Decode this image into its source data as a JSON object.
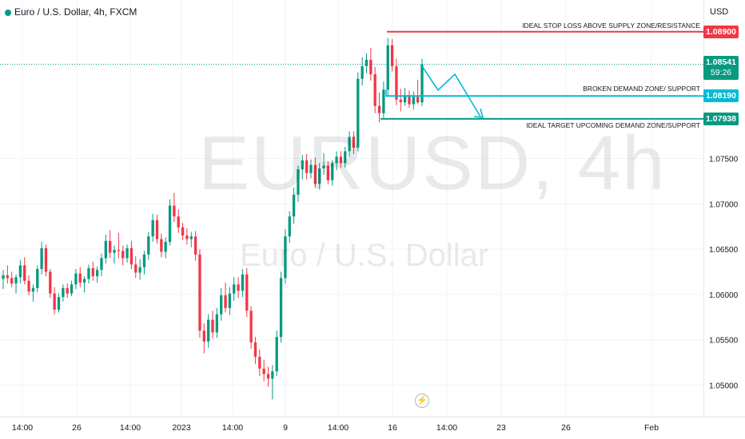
{
  "header": {
    "title": "Euro / U.S. Dollar, 4h, FXCM"
  },
  "watermark": {
    "symbol": "EURUSD, 4h",
    "name": "Euro / U.S. Dollar"
  },
  "price_scale": {
    "currency": "USD",
    "last_price": "1.08541",
    "countdown": "59:26"
  },
  "lines": [
    {
      "label": "IDEAL STOP LOSS ABOVE SUPPLY ZONE/RESISTANCE",
      "price": 1.089,
      "tag": "1.08900",
      "color": "#f23645"
    },
    {
      "label": "BROKEN DEMAND ZONE/ SUPPORT",
      "price": 1.0819,
      "tag": "1.08190",
      "color": "#00bcd4"
    },
    {
      "label": "IDEAL TARGET UPCOMING DEMAND ZONE/SUPPORT",
      "price": 1.07938,
      "tag": "1.07938",
      "color": "#089981"
    }
  ],
  "colors": {
    "up": "#089981",
    "down": "#f23645",
    "grid": "#f0f3fa",
    "projection": "#00bcd4",
    "last_price_tag": "#089981"
  },
  "chart_data": {
    "type": "candlestick",
    "title": "Euro / U.S. Dollar, 4h, FXCM",
    "symbol": "EURUSD",
    "interval": "4h",
    "ylim": [
      1.0465,
      1.0925
    ],
    "y_ticks": [
      "1.07500",
      "1.07000",
      "1.06500",
      "1.06000",
      "1.05500",
      "1.05000"
    ],
    "x_ticks": [
      "14:00",
      "26",
      "14:00",
      "2023",
      "14:00",
      "9",
      "14:00",
      "16",
      "14:00",
      "23",
      "26",
      "Feb"
    ],
    "grid": true,
    "candles": [
      [
        1.0617,
        1.0627,
        1.0606,
        1.0621
      ],
      [
        1.0621,
        1.0632,
        1.0612,
        1.0618
      ],
      [
        1.0618,
        1.0625,
        1.0608,
        1.0612
      ],
      [
        1.0612,
        1.0622,
        1.0601,
        1.0619
      ],
      [
        1.0619,
        1.0638,
        1.0612,
        1.0632
      ],
      [
        1.0632,
        1.0641,
        1.0611,
        1.0615
      ],
      [
        1.0615,
        1.0621,
        1.0599,
        1.0603
      ],
      [
        1.0603,
        1.0611,
        1.0592,
        1.0607
      ],
      [
        1.0607,
        1.0632,
        1.0602,
        1.0628
      ],
      [
        1.0628,
        1.0658,
        1.0622,
        1.0651
      ],
      [
        1.0651,
        1.0655,
        1.062,
        1.0625
      ],
      [
        1.0625,
        1.0628,
        1.0596,
        1.0601
      ],
      [
        1.0601,
        1.0608,
        1.0578,
        1.0583
      ],
      [
        1.0583,
        1.0601,
        1.058,
        1.0597
      ],
      [
        1.0597,
        1.0611,
        1.0592,
        1.0607
      ],
      [
        1.0607,
        1.0612,
        1.0596,
        1.0601
      ],
      [
        1.0601,
        1.0615,
        1.0598,
        1.0611
      ],
      [
        1.0611,
        1.0628,
        1.0606,
        1.0623
      ],
      [
        1.0623,
        1.063,
        1.0608,
        1.0613
      ],
      [
        1.0613,
        1.062,
        1.0602,
        1.0617
      ],
      [
        1.0617,
        1.0633,
        1.0612,
        1.0629
      ],
      [
        1.0629,
        1.0636,
        1.0615,
        1.062
      ],
      [
        1.062,
        1.0631,
        1.0613,
        1.0627
      ],
      [
        1.0627,
        1.0645,
        1.062,
        1.064
      ],
      [
        1.064,
        1.0666,
        1.0634,
        1.0659
      ],
      [
        1.0659,
        1.0671,
        1.064,
        1.0646
      ],
      [
        1.0646,
        1.0654,
        1.0634,
        1.0649
      ],
      [
        1.0649,
        1.0668,
        1.064,
        1.0648
      ],
      [
        1.0648,
        1.0654,
        1.0632,
        1.064
      ],
      [
        1.064,
        1.0655,
        1.0635,
        1.0651
      ],
      [
        1.0651,
        1.0659,
        1.0628,
        1.0633
      ],
      [
        1.0633,
        1.0642,
        1.0618,
        1.0624
      ],
      [
        1.0624,
        1.0639,
        1.0616,
        1.063
      ],
      [
        1.063,
        1.0648,
        1.0622,
        1.0644
      ],
      [
        1.0644,
        1.0669,
        1.0638,
        1.0664
      ],
      [
        1.0664,
        1.0689,
        1.0658,
        1.0682
      ],
      [
        1.0682,
        1.0688,
        1.0656,
        1.0661
      ],
      [
        1.0661,
        1.0667,
        1.0641,
        1.0647
      ],
      [
        1.0647,
        1.0663,
        1.064,
        1.0658
      ],
      [
        1.0658,
        1.0705,
        1.0654,
        1.0698
      ],
      [
        1.0698,
        1.0712,
        1.068,
        1.0686
      ],
      [
        1.0686,
        1.0694,
        1.0668,
        1.0674
      ],
      [
        1.0674,
        1.0679,
        1.066,
        1.0665
      ],
      [
        1.0665,
        1.0673,
        1.0655,
        1.0661
      ],
      [
        1.0661,
        1.0669,
        1.0652,
        1.0664
      ],
      [
        1.0664,
        1.067,
        1.0637,
        1.0644
      ],
      [
        1.0644,
        1.065,
        1.0552,
        1.056
      ],
      [
        1.056,
        1.0568,
        1.0535,
        1.0548
      ],
      [
        1.0548,
        1.0578,
        1.0541,
        1.0572
      ],
      [
        1.0572,
        1.0582,
        1.0551,
        1.0558
      ],
      [
        1.0558,
        1.0585,
        1.0552,
        1.0578
      ],
      [
        1.0578,
        1.0607,
        1.0571,
        1.0599
      ],
      [
        1.0599,
        1.0613,
        1.058,
        1.0585
      ],
      [
        1.0585,
        1.0608,
        1.0577,
        1.0601
      ],
      [
        1.0601,
        1.0619,
        1.0593,
        1.0611
      ],
      [
        1.0611,
        1.0619,
        1.0596,
        1.0604
      ],
      [
        1.0604,
        1.0628,
        1.0597,
        1.0622
      ],
      [
        1.0622,
        1.0629,
        1.0575,
        1.0582
      ],
      [
        1.0582,
        1.0587,
        1.054,
        1.0547
      ],
      [
        1.0547,
        1.0553,
        1.0523,
        1.0531
      ],
      [
        1.0531,
        1.0539,
        1.051,
        1.0518
      ],
      [
        1.0518,
        1.0528,
        1.0504,
        1.0512
      ],
      [
        1.0512,
        1.052,
        1.0498,
        1.0507
      ],
      [
        1.0507,
        1.0522,
        1.0484,
        1.0515
      ],
      [
        1.0515,
        1.056,
        1.051,
        1.0553
      ],
      [
        1.0553,
        1.0625,
        1.0547,
        1.0618
      ],
      [
        1.0618,
        1.0672,
        1.0612,
        1.0664
      ],
      [
        1.0664,
        1.0692,
        1.0657,
        1.0686
      ],
      [
        1.0686,
        1.0718,
        1.0678,
        1.071
      ],
      [
        1.071,
        1.0742,
        1.0702,
        1.0738
      ],
      [
        1.0738,
        1.0754,
        1.0727,
        1.0748
      ],
      [
        1.0748,
        1.0755,
        1.0727,
        1.0734
      ],
      [
        1.0734,
        1.0749,
        1.0728,
        1.0743
      ],
      [
        1.0743,
        1.0751,
        1.0718,
        1.0722
      ],
      [
        1.0722,
        1.0745,
        1.0716,
        1.0739
      ],
      [
        1.0739,
        1.0756,
        1.0732,
        1.0742
      ],
      [
        1.0742,
        1.0747,
        1.0722,
        1.0726
      ],
      [
        1.0726,
        1.0748,
        1.072,
        1.0745
      ],
      [
        1.0745,
        1.0758,
        1.0737,
        1.0752
      ],
      [
        1.0752,
        1.0758,
        1.074,
        1.0745
      ],
      [
        1.0745,
        1.0763,
        1.074,
        1.0758
      ],
      [
        1.0758,
        1.078,
        1.0752,
        1.0774
      ],
      [
        1.0774,
        1.078,
        1.0755,
        1.0762
      ],
      [
        1.0762,
        1.0845,
        1.0758,
        1.0838
      ],
      [
        1.0838,
        1.0862,
        1.0831,
        1.0852
      ],
      [
        1.0852,
        1.0866,
        1.0844,
        1.0859
      ],
      [
        1.0859,
        1.0872,
        1.0836,
        1.0843
      ],
      [
        1.0843,
        1.0851,
        1.08,
        1.0808
      ],
      [
        1.0808,
        1.0823,
        1.079,
        1.08
      ],
      [
        1.08,
        1.0835,
        1.0795,
        1.0826
      ],
      [
        1.0826,
        1.0883,
        1.082,
        1.0875
      ],
      [
        1.0875,
        1.0882,
        1.0846,
        1.0852
      ],
      [
        1.0852,
        1.086,
        1.0809,
        1.0815
      ],
      [
        1.0815,
        1.0827,
        1.0802,
        1.0812
      ],
      [
        1.0812,
        1.0828,
        1.0808,
        1.082
      ],
      [
        1.082,
        1.0825,
        1.0806,
        1.081
      ],
      [
        1.081,
        1.0824,
        1.0804,
        1.0818
      ],
      [
        1.0818,
        1.0837,
        1.081,
        1.0812
      ],
      [
        1.0812,
        1.086,
        1.0808,
        1.0854
      ]
    ]
  }
}
